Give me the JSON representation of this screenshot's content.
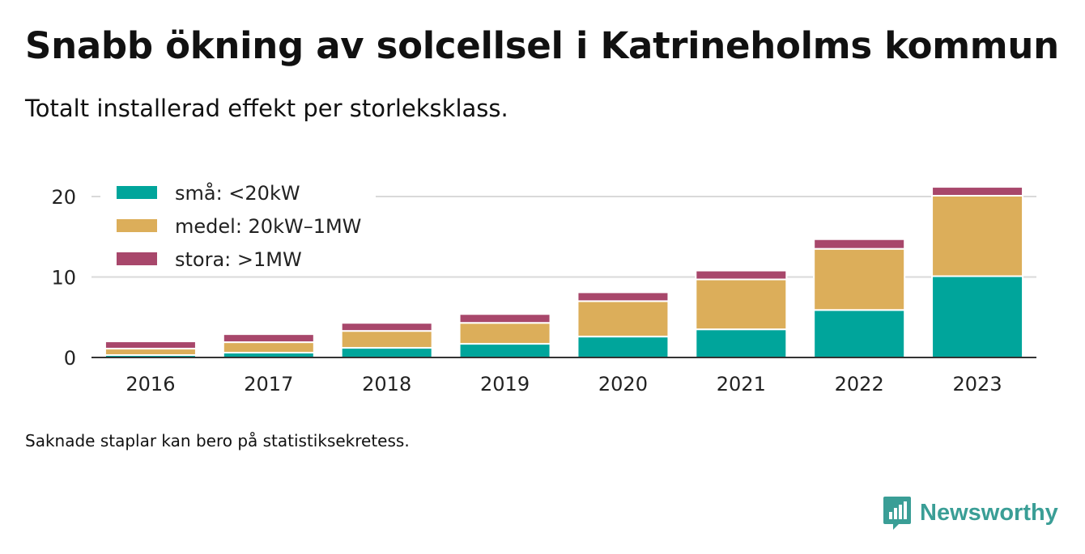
{
  "title": "Snabb ökning av solcellsel i Katrineholms kommun",
  "subtitle": "Totalt installerad effekt per storleksklass.",
  "note": "Saknade staplar kan bero på statistiksekretess.",
  "brand": {
    "name": "Newsworthy",
    "icon": "newsworthy-logo-icon",
    "color": "#3a9e96"
  },
  "chart_data": {
    "type": "bar",
    "stacked": true,
    "categories": [
      "2016",
      "2017",
      "2018",
      "2019",
      "2020",
      "2021",
      "2022",
      "2023"
    ],
    "series": [
      {
        "name": "små: <20kW",
        "color": "#00a59b",
        "values": [
          0.3,
          0.6,
          1.2,
          1.7,
          2.6,
          3.5,
          5.9,
          10.1
        ]
      },
      {
        "name": "medel: 20kW–1MW",
        "color": "#dcae5a",
        "values": [
          0.8,
          1.3,
          2.1,
          2.6,
          4.4,
          6.2,
          7.6,
          10.0
        ]
      },
      {
        "name": "stora: >1MW",
        "color": "#a8476b",
        "values": [
          0.9,
          1.0,
          1.0,
          1.1,
          1.1,
          1.1,
          1.2,
          1.1
        ]
      }
    ],
    "yticks": [
      0,
      10,
      20
    ],
    "ylim": [
      0,
      21.3
    ],
    "grid": true,
    "legend_position": "top-left"
  }
}
